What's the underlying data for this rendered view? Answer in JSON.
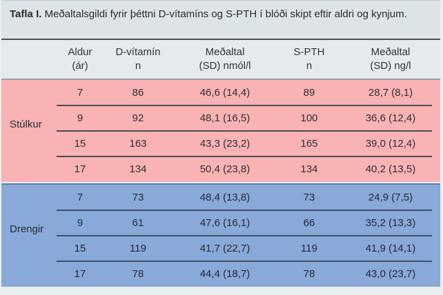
{
  "title": {
    "label": "Tafla I.",
    "text": " Meðaltalsgildi fyrir þéttni D-vítamíns og S-PTH í blóði skipt eftir aldri og kynjum."
  },
  "table": {
    "columns": [
      {
        "line1": "Aldur",
        "line2": "(ár)"
      },
      {
        "line1": "D-vítamín",
        "line2": "n"
      },
      {
        "line1": "Meðaltal",
        "line2": "(SD) nmól/l"
      },
      {
        "line1": "S-PTH",
        "line2": "n"
      },
      {
        "line1": "Meðaltal",
        "line2": "(SD) ng/l"
      }
    ],
    "groups": [
      {
        "label": "Stúlkur",
        "rows": [
          [
            "7",
            "86",
            "46,6 (14,4)",
            "89",
            "28,7 (8,1)"
          ],
          [
            "9",
            "92",
            "48,1 (16,5)",
            "100",
            "36,6 (12,4)"
          ],
          [
            "15",
            "163",
            "43,3 (23,2)",
            "165",
            "39,0 (12,4)"
          ],
          [
            "17",
            "134",
            "50,4 (23,8)",
            "134",
            "40,2 (13,5)"
          ]
        ]
      },
      {
        "label": "Drengir",
        "rows": [
          [
            "7",
            "73",
            "48,4 (13,8)",
            "73",
            "24,9 (7,5)"
          ],
          [
            "9",
            "61",
            "47,6 (16,1)",
            "66",
            "35,2 (13,3)"
          ],
          [
            "15",
            "119",
            "41,7 (22,7)",
            "119",
            "41,9 (14,1)"
          ],
          [
            "17",
            "78",
            "44,4 (18,7)",
            "78",
            "43,0 (23,7)"
          ]
        ]
      }
    ]
  },
  "colors": {
    "girls_bg": "#f9b3b5",
    "boys_bg": "#89a9d8",
    "title_band_bg": "#dce4e8",
    "header_bg": "#e4eaed",
    "divider": "#4d4d4d"
  },
  "chart_data": {
    "type": "table",
    "title": "Tafla I. Meðaltalsgildi fyrir þéttni D-vítamíns og S-PTH í blóði skipt eftir aldri og kynjum.",
    "columns": [
      "Aldur (ár)",
      "D-vítamín n",
      "Meðaltal (SD) nmól/l",
      "S-PTH n",
      "Meðaltal (SD) ng/l"
    ],
    "row_groups": [
      "Stúlkur",
      "Drengir"
    ]
  }
}
